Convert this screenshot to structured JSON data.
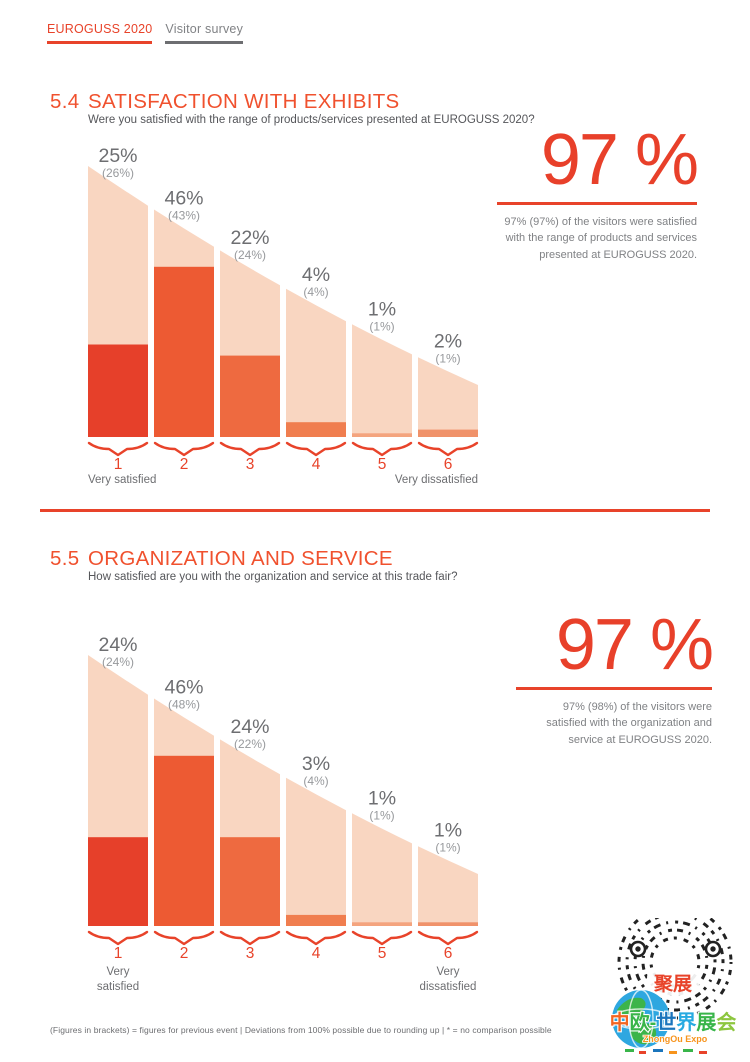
{
  "header": {
    "brand": "EUROGUSS 2020",
    "survey": "Visitor survey"
  },
  "colors": {
    "accent": "#e8432a",
    "heading": "#f0512e",
    "stat_number": "#e8402a",
    "envelope": "#f9d6c1",
    "bar_colors": [
      "#e6402a",
      "#ed5a33",
      "#ee6a40",
      "#f07e4f",
      "#f4a47e",
      "#f0926a"
    ],
    "value_label": "#6d6e71",
    "previous_label": "#97999c",
    "axis_label": "#6d6e71"
  },
  "sections": [
    {
      "number": "5.4",
      "title": "SATISFACTION WITH EXHIBITS",
      "question": "Were you satisfied with the range of products/services presented at EUROGUSS 2020?",
      "stat": {
        "big": "97 %",
        "lines": [
          "97% (97%) of the visitors were satisfied",
          "with the range of products and services",
          "presented at EUROGUSS 2020."
        ]
      }
    },
    {
      "number": "5.5",
      "title": "ORGANIZATION AND SERVICE",
      "question": "How satisfied are you with the organization and service at this trade fair?",
      "stat": {
        "big": "97 %",
        "lines": [
          "97% (98%) of the visitors were",
          "satisfied with the organization and",
          "service at EUROGUSS 2020."
        ]
      }
    }
  ],
  "chart_data": [
    {
      "type": "bar",
      "title": "Satisfaction with exhibits",
      "categories": [
        "1",
        "2",
        "3",
        "4",
        "5",
        "6"
      ],
      "values": [
        25,
        46,
        22,
        4,
        1,
        2
      ],
      "previous_event_values": [
        26,
        43,
        24,
        4,
        1,
        1
      ],
      "value_labels": [
        "25%",
        "46%",
        "22%",
        "4%",
        "1%",
        "2%"
      ],
      "previous_labels": [
        "(26%)",
        "(43%)",
        "(24%)",
        "(4%)",
        "(1%)",
        "(1%)"
      ],
      "x_axis_left_label_lines": [
        "Very satisfied"
      ],
      "x_axis_right_label_lines": [
        "Very dissatisfied"
      ],
      "ylim": [
        0,
        60
      ],
      "grid": false,
      "legend": "none"
    },
    {
      "type": "bar",
      "title": "Organization and service",
      "categories": [
        "1",
        "2",
        "3",
        "4",
        "5",
        "6"
      ],
      "values": [
        24,
        46,
        24,
        3,
        1,
        1
      ],
      "previous_event_values": [
        24,
        48,
        22,
        4,
        1,
        1
      ],
      "value_labels": [
        "24%",
        "46%",
        "24%",
        "3%",
        "1%",
        "1%"
      ],
      "previous_labels": [
        "(24%)",
        "(48%)",
        "(22%)",
        "(4%)",
        "(1%)",
        "(1%)"
      ],
      "x_axis_left_label_lines": [
        "Very",
        "satisfied"
      ],
      "x_axis_right_label_lines": [
        "Very",
        "dissatisfied"
      ],
      "ylim": [
        0,
        60
      ],
      "grid": false,
      "legend": "none"
    }
  ],
  "footer": {
    "note": "(Figures in brackets) = figures for previous event | Deviations from 100% possible due to rounding up | * = no comparison possible"
  },
  "logo": {
    "badge_text": "聚展",
    "title_chars": [
      {
        "c": "中",
        "color": "#f26522"
      },
      {
        "c": "欧",
        "color": "#39b54a"
      },
      {
        "c": "-",
        "color": "#39b54a"
      },
      {
        "c": "世",
        "color": "#1b75bc"
      },
      {
        "c": "界",
        "color": "#27aae1"
      },
      {
        "c": "展",
        "color": "#39b54a"
      },
      {
        "c": "会",
        "color": "#8dc63f"
      }
    ],
    "subtitle": "ZhongOu Expo"
  }
}
